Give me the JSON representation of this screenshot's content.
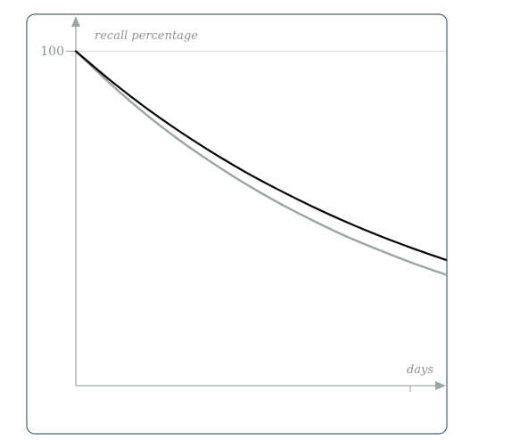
{
  "chart_data": {
    "type": "line",
    "title": "",
    "xlabel": "days",
    "ylabel": "recall percentage",
    "y_tick_labels": [
      "100"
    ],
    "grid": false,
    "legend": "none",
    "ylim": [
      0,
      100
    ],
    "series": [
      {
        "color": "#000000",
        "x": [
          0,
          1,
          2,
          3,
          4,
          5,
          6,
          7,
          8,
          9,
          10,
          11
        ],
        "values": [
          100,
          91.5,
          83.7,
          76.6,
          70.1,
          64.1,
          58.7,
          53.7,
          49.1,
          44.9,
          41.1,
          37.6
        ]
      },
      {
        "color": "#9aa6a6",
        "x": [
          0,
          1,
          2,
          3,
          4,
          5,
          6,
          7,
          8,
          9,
          10,
          11
        ],
        "values": [
          100,
          90.5,
          81.8,
          74.0,
          67.0,
          60.6,
          54.8,
          49.6,
          44.8,
          40.6,
          36.7,
          33.2
        ]
      }
    ],
    "colors": {
      "frame": "#4a6272",
      "axis": "#9aa6a6",
      "gridline": "#d8dede",
      "text": "#8a9595"
    }
  }
}
